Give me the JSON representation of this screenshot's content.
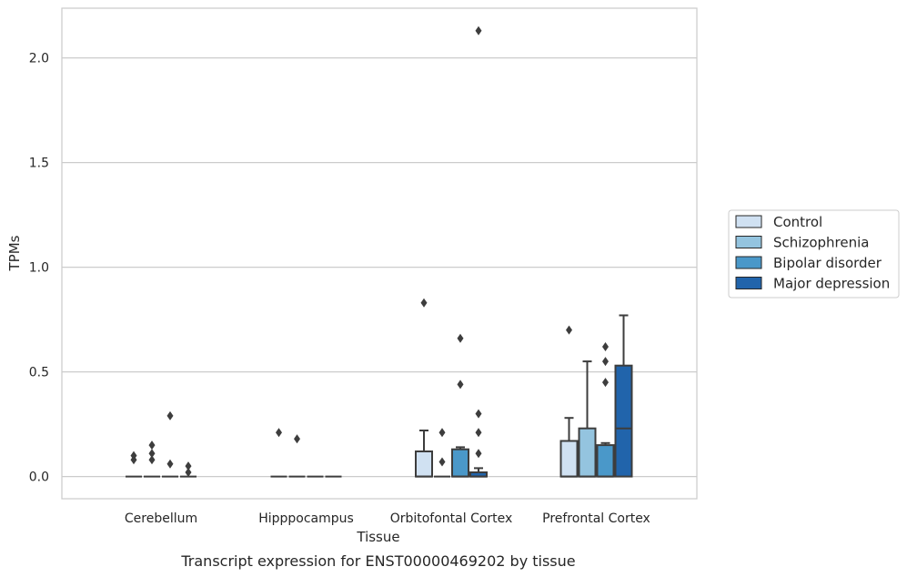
{
  "chart_data": {
    "type": "box",
    "title": "",
    "caption": "Transcript expression for ENST00000469202 by tissue",
    "xlabel": "Tissue",
    "ylabel": "TPMs",
    "ylim": [
      -0.1,
      2.25
    ],
    "yticks": [
      0.0,
      0.5,
      1.0,
      1.5,
      2.0
    ],
    "ytick_labels": [
      "0.0",
      "0.5",
      "1.0",
      "1.5",
      "2.0"
    ],
    "grid": "horizontal",
    "legend_position": "right",
    "categories": [
      "Cerebellum",
      "Hipppocampus",
      "Orbitofontal Cortex",
      "Prefrontal Cortex"
    ],
    "series": [
      {
        "name": "Control",
        "color": "#d0e1f2",
        "boxes": [
          {
            "q1": 0,
            "median": 0,
            "q3": 0,
            "whisker_low": 0,
            "whisker_high": 0,
            "outliers": [
              0.1,
              0.08
            ]
          },
          {
            "q1": 0,
            "median": 0,
            "q3": 0,
            "whisker_low": 0,
            "whisker_high": 0,
            "outliers": [
              0.21
            ]
          },
          {
            "q1": 0,
            "median": 0,
            "q3": 0.12,
            "whisker_low": 0,
            "whisker_high": 0.22,
            "outliers": [
              0.83
            ]
          },
          {
            "q1": 0,
            "median": 0,
            "q3": 0.17,
            "whisker_low": 0,
            "whisker_high": 0.28,
            "outliers": [
              0.7
            ]
          }
        ]
      },
      {
        "name": "Schizophrenia",
        "color": "#94c4df",
        "boxes": [
          {
            "q1": 0,
            "median": 0,
            "q3": 0,
            "whisker_low": 0,
            "whisker_high": 0,
            "outliers": [
              0.15,
              0.11,
              0.08
            ]
          },
          {
            "q1": 0,
            "median": 0,
            "q3": 0,
            "whisker_low": 0,
            "whisker_high": 0,
            "outliers": [
              0.18
            ]
          },
          {
            "q1": 0,
            "median": 0,
            "q3": 0,
            "whisker_low": 0,
            "whisker_high": 0,
            "outliers": [
              0.21,
              0.07
            ]
          },
          {
            "q1": 0,
            "median": 0,
            "q3": 0.23,
            "whisker_low": 0,
            "whisker_high": 0.55,
            "outliers": []
          }
        ]
      },
      {
        "name": "Bipolar disorder",
        "color": "#4a98c9",
        "boxes": [
          {
            "q1": 0,
            "median": 0,
            "q3": 0,
            "whisker_low": 0,
            "whisker_high": 0,
            "outliers": [
              0.29,
              0.06
            ]
          },
          {
            "q1": 0,
            "median": 0,
            "q3": 0,
            "whisker_low": 0,
            "whisker_high": 0,
            "outliers": []
          },
          {
            "q1": 0,
            "median": 0,
            "q3": 0.13,
            "whisker_low": 0,
            "whisker_high": 0.14,
            "outliers": [
              0.66,
              0.44
            ]
          },
          {
            "q1": 0,
            "median": 0,
            "q3": 0.15,
            "whisker_low": 0,
            "whisker_high": 0.16,
            "outliers": [
              0.62,
              0.55,
              0.45
            ]
          }
        ]
      },
      {
        "name": "Major depression",
        "color": "#2164ab",
        "boxes": [
          {
            "q1": 0,
            "median": 0,
            "q3": 0,
            "whisker_low": 0,
            "whisker_high": 0,
            "outliers": [
              0.05,
              0.02
            ]
          },
          {
            "q1": 0,
            "median": 0,
            "q3": 0,
            "whisker_low": 0,
            "whisker_high": 0,
            "outliers": []
          },
          {
            "q1": 0,
            "median": 0,
            "q3": 0.02,
            "whisker_low": 0,
            "whisker_high": 0.04,
            "outliers": [
              2.13,
              0.3,
              0.21,
              0.11
            ]
          },
          {
            "q1": 0,
            "median": 0.23,
            "q3": 0.53,
            "whisker_low": 0,
            "whisker_high": 0.77,
            "outliers": []
          }
        ]
      }
    ]
  }
}
